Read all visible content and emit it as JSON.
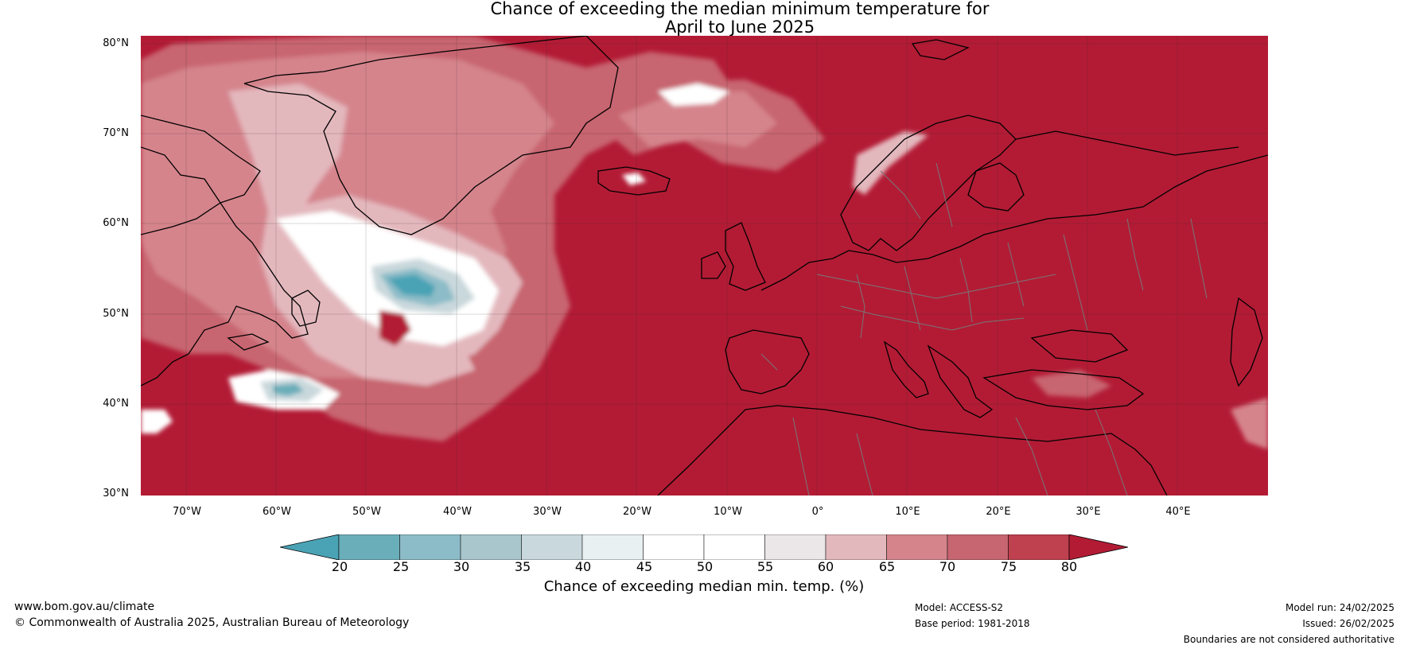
{
  "title": {
    "line1": "Chance of exceeding the median minimum temperature for",
    "line2": "April to June 2025"
  },
  "axes": {
    "lat_labels": [
      "80°N",
      "70°N",
      "60°N",
      "50°N",
      "40°N",
      "30°N"
    ],
    "lon_labels": [
      "70°W",
      "60°W",
      "50°W",
      "40°W",
      "30°W",
      "20°W",
      "10°W",
      "0°",
      "10°E",
      "20°E",
      "30°E",
      "40°E"
    ],
    "lat_range": [
      30,
      80
    ],
    "lon_range": [
      -75,
      50
    ]
  },
  "colorbar": {
    "ticks": [
      "20",
      "25",
      "30",
      "35",
      "40",
      "45",
      "50",
      "55",
      "60",
      "65",
      "70",
      "75",
      "80"
    ],
    "label": "Chance of exceeding median min. temp. (%)",
    "colors": [
      "#4aa3b5",
      "#6aaeba",
      "#8cbcc7",
      "#aac6cd",
      "#c9d8dc",
      "#e9f0f1",
      "#ffffff",
      "#ffffff",
      "#ebe6e7",
      "#e3b8bd",
      "#d5848c",
      "#c76570",
      "#bf404f",
      "#b31b35"
    ]
  },
  "footer": {
    "website": "www.bom.gov.au/climate",
    "copyright": "© Commonwealth of Australia 2025, Australian Bureau of Meteorology",
    "model": "Model: ACCESS-S2",
    "base_period": "Base period: 1981-2018",
    "model_run": "Model run: 24/02/2025",
    "issued": "Issued: 26/02/2025",
    "disclaimer": "Boundaries are not considered authoritative"
  },
  "colors": {
    "background_field": "#b31b35",
    "coast": "#000000",
    "borders": "#777777",
    "grid": "#222222"
  }
}
